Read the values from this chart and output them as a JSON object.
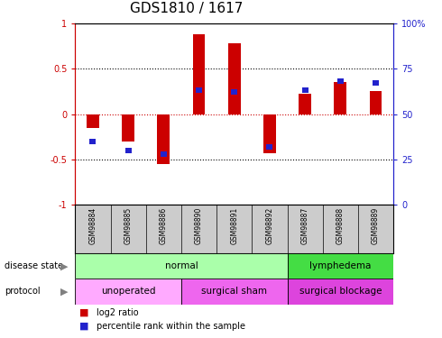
{
  "title": "GDS1810 / 1617",
  "samples": [
    "GSM98884",
    "GSM98885",
    "GSM98886",
    "GSM98890",
    "GSM98891",
    "GSM98892",
    "GSM98887",
    "GSM98888",
    "GSM98889"
  ],
  "log2_ratio": [
    -0.15,
    -0.3,
    -0.55,
    0.88,
    0.78,
    -0.43,
    0.22,
    0.35,
    0.25
  ],
  "percentile": [
    35,
    30,
    28,
    63,
    62,
    32,
    63,
    68,
    67
  ],
  "ylim": [
    -1,
    1
  ],
  "ylim_right": [
    0,
    100
  ],
  "yticks_left": [
    -1,
    -0.5,
    0,
    0.5,
    1
  ],
  "yticks_right": [
    0,
    25,
    50,
    75,
    100
  ],
  "bar_color_red": "#cc0000",
  "bar_color_blue": "#2222cc",
  "red_dotted_color": "#cc0000",
  "disease_state_groups": [
    {
      "label": "normal",
      "start": 0,
      "end": 6,
      "color": "#aaffaa"
    },
    {
      "label": "lymphedema",
      "start": 6,
      "end": 9,
      "color": "#44dd44"
    }
  ],
  "protocol_groups": [
    {
      "label": "unoperated",
      "start": 0,
      "end": 3,
      "color": "#ffaaff"
    },
    {
      "label": "surgical sham",
      "start": 3,
      "end": 6,
      "color": "#ee66ee"
    },
    {
      "label": "surgical blockage",
      "start": 6,
      "end": 9,
      "color": "#dd44dd"
    }
  ],
  "legend_items": [
    {
      "label": "log2 ratio",
      "color": "#cc0000"
    },
    {
      "label": "percentile rank within the sample",
      "color": "#2222cc"
    }
  ],
  "right_axis_color": "#2222cc",
  "left_axis_color": "#cc0000",
  "bar_width": 0.35,
  "blue_bar_width": 0.18,
  "blue_bar_height": 0.06,
  "sample_bg_color": "#cccccc",
  "title_fontsize": 11,
  "tick_fontsize": 7,
  "label_fontsize": 7,
  "annotation_fontsize": 7.5
}
